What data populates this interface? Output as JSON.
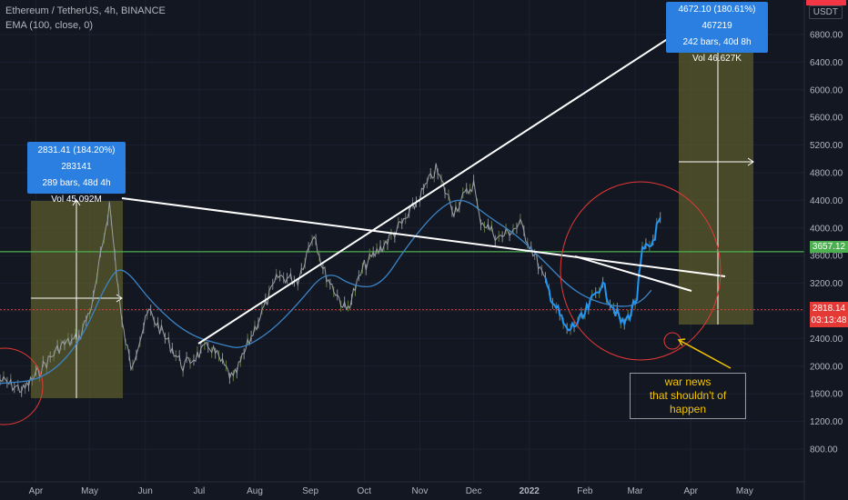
{
  "header": {
    "symbol_line": "Ethereum / TetherUS, 4h, BINANCE",
    "indicator_line": "EMA (100, close, 0)",
    "currency": "USDT"
  },
  "colors": {
    "background": "#131722",
    "price_line": "#2196f3",
    "ema_line": "#3a84c6",
    "green_level": "#4caf50",
    "red_level": "#e53935",
    "trendline": "#ffffff",
    "measure_box": "#6b6a2e",
    "circle": "#e53935",
    "note_text": "#f5c400"
  },
  "annotations": {
    "measure_1": {
      "line1": "2831.41 (184.20%) 283141",
      "line2": "289 bars, 48d 4h",
      "line3": "Vol 45.092M"
    },
    "measure_2": {
      "line1": "4672.10 (180.61%) 467219",
      "line2": "242 bars, 40d 8h",
      "line3": "Vol 46.627K"
    },
    "note": {
      "line1": "war news",
      "line2": "that shouldn't of happen"
    }
  },
  "price_tags": {
    "green": {
      "value": "3657.12",
      "color": "#4caf50"
    },
    "red": {
      "value": "2818.14",
      "countdown": "03:13:48",
      "color": "#e53935"
    }
  },
  "chart_data": {
    "type": "line",
    "title": "Ethereum / TetherUS, 4h, BINANCE",
    "x_tick_labels": [
      "Apr",
      "May",
      "Jun",
      "Jul",
      "Aug",
      "Sep",
      "Oct",
      "Nov",
      "Dec",
      "2022",
      "Feb",
      "Mar",
      "Apr",
      "May"
    ],
    "y_tick_labels": [
      "800.00",
      "1200.00",
      "1600.00",
      "2000.00",
      "2400.00",
      "2800.00",
      "3200.00",
      "3600.00",
      "4000.00",
      "4400.00",
      "4800.00",
      "5200.00",
      "5600.00",
      "6000.00",
      "6400.00",
      "6800.00"
    ],
    "y_tick_values": [
      800,
      1200,
      1600,
      2000,
      2400,
      2800,
      3200,
      3600,
      4000,
      4400,
      4800,
      5200,
      5600,
      6000,
      6400,
      6800
    ],
    "ylim": [
      600,
      7200
    ],
    "grid": true,
    "series": [
      {
        "name": "",
        "x": [
          "2021-03-12",
          "2021-03-25",
          "2021-04-05",
          "2021-04-15",
          "2021-04-25",
          "2021-05-03",
          "2021-05-12",
          "2021-05-19",
          "2021-05-24",
          "2021-06-03",
          "2021-06-22",
          "2021-07-07",
          "2021-07-20",
          "2021-08-01",
          "2021-08-14",
          "2021-08-25",
          "2021-09-03",
          "2021-09-08",
          "2021-09-21",
          "2021-10-01",
          "2021-10-15",
          "2021-10-25",
          "2021-11-10",
          "2021-11-20",
          "2021-12-01",
          "2021-12-04",
          "2021-12-15",
          "2021-12-27",
          "2022-01-05",
          "2022-01-10",
          "2022-01-22",
          "2022-01-31",
          "2022-02-10",
          "2022-02-22",
          "2022-02-25",
          "2022-03-02",
          "2022-03-05",
          "2022-03-10",
          "2022-03-15"
        ],
        "values": [
          1800,
          1650,
          2000,
          2300,
          2400,
          2950,
          4350,
          2600,
          2000,
          2800,
          2000,
          2300,
          1800,
          2550,
          3300,
          3250,
          3950,
          3400,
          2800,
          3450,
          3850,
          4150,
          4850,
          4250,
          4650,
          4150,
          3850,
          4050,
          3550,
          3200,
          2500,
          2700,
          3200,
          2600,
          2700,
          3000,
          3650,
          3750,
          4150
        ]
      },
      {
        "name": "EMA (100, close, 0)",
        "x": [
          "2021-03-12",
          "2021-04-05",
          "2021-04-25",
          "2021-05-12",
          "2021-05-20",
          "2021-06-05",
          "2021-06-25",
          "2021-07-15",
          "2021-07-25",
          "2021-08-10",
          "2021-08-25",
          "2021-09-10",
          "2021-09-25",
          "2021-10-10",
          "2021-10-25",
          "2021-11-12",
          "2021-11-25",
          "2021-12-10",
          "2021-12-25",
          "2022-01-10",
          "2022-01-25",
          "2022-02-10",
          "2022-02-25",
          "2022-03-05",
          "2022-03-10"
        ],
        "values": [
          1750,
          1800,
          2300,
          3300,
          3450,
          2900,
          2450,
          2300,
          2250,
          2500,
          2900,
          3400,
          3150,
          3150,
          3750,
          4300,
          4450,
          4150,
          3900,
          3500,
          3100,
          2900,
          2850,
          2950,
          3100
        ]
      }
    ],
    "levels": [
      {
        "name": "3657.12",
        "value": 3657.12
      },
      {
        "name": "2818.14",
        "value": 2818.14
      }
    ]
  }
}
